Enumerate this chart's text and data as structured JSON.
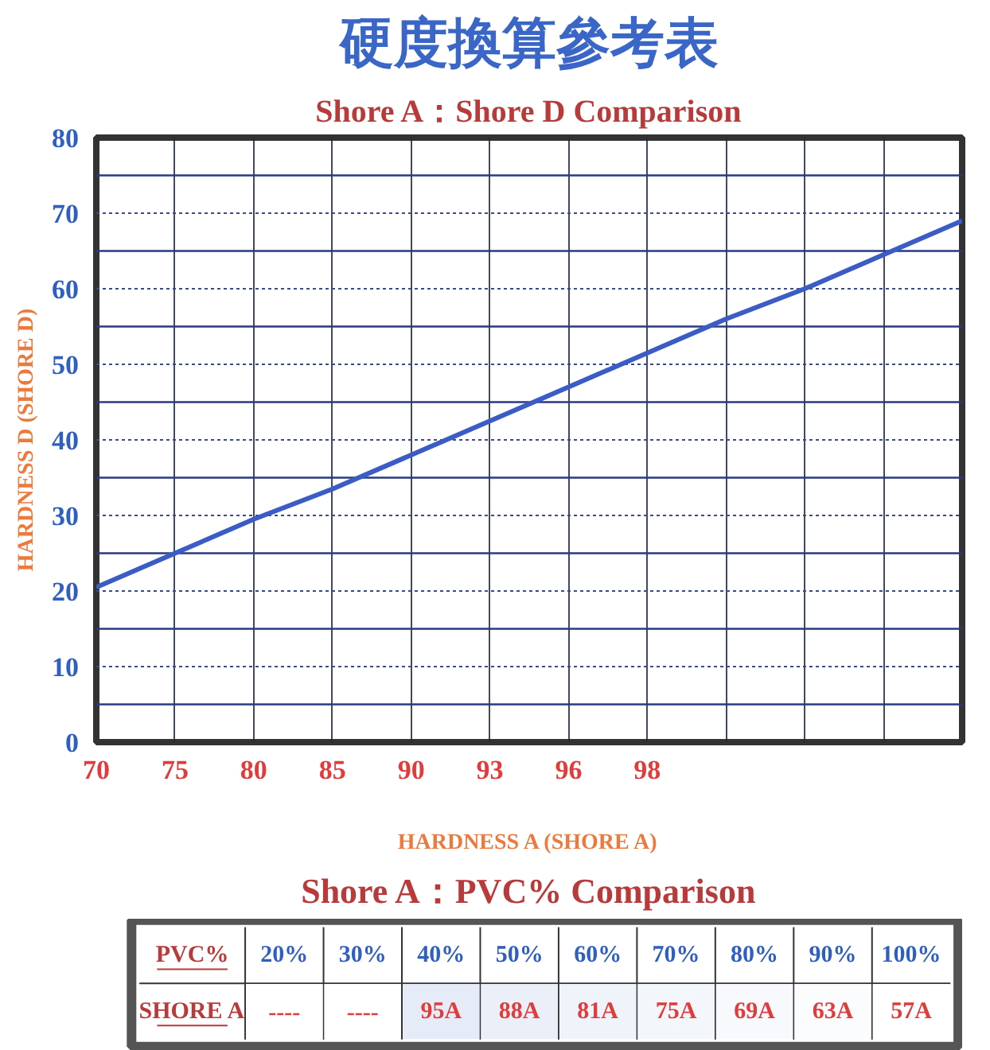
{
  "chart_data": [
    {
      "type": "line",
      "title": "硬度換算參考表",
      "subtitle": "Shore A：Shore D Comparison",
      "xlabel": "HARDNESS A (SHORE A)",
      "ylabel": "HARDNESS D (SHORE D)",
      "categories": [
        "70",
        "75",
        "80",
        "85",
        "90",
        "93",
        "96",
        "98",
        null,
        null,
        null,
        null
      ],
      "series": [
        {
          "color": "#3a5cc4",
          "values": [
            20.5,
            25,
            29.5,
            33.5,
            38,
            42.5,
            47,
            51.5,
            56,
            60,
            64.5,
            69
          ]
        }
      ],
      "ylim": [
        0,
        80
      ],
      "yticks": [
        0,
        {
          "value": 5,
          "label": null
        },
        10,
        {
          "value": 15,
          "label": null
        },
        20,
        {
          "value": 25,
          "label": null
        },
        30,
        {
          "value": 35,
          "label": null
        },
        40,
        {
          "value": 45,
          "label": null
        },
        50,
        {
          "value": 55,
          "label": null
        },
        60,
        {
          "value": 65,
          "label": null
        },
        70,
        {
          "value": 75,
          "label": null
        },
        80
      ],
      "grid": true,
      "line_style": "solid",
      "marker": "none"
    },
    {
      "type": "heatmap",
      "title": "Shore A：PVC% Comparison",
      "xlabel": "PVC%",
      "categories": [
        "20%",
        "30%",
        "40%",
        "50%",
        "60%",
        "70%",
        "80%",
        "90%",
        "100%"
      ],
      "y_categories": [
        "SHORE A"
      ],
      "cells": [
        [
          null,
          null,
          95,
          88,
          81,
          75,
          69,
          63,
          57
        ]
      ],
      "cell_labels": [
        [
          "----",
          "----",
          "95A",
          "88A",
          "81A",
          "75A",
          "69A",
          "63A",
          "57A"
        ]
      ]
    }
  ]
}
